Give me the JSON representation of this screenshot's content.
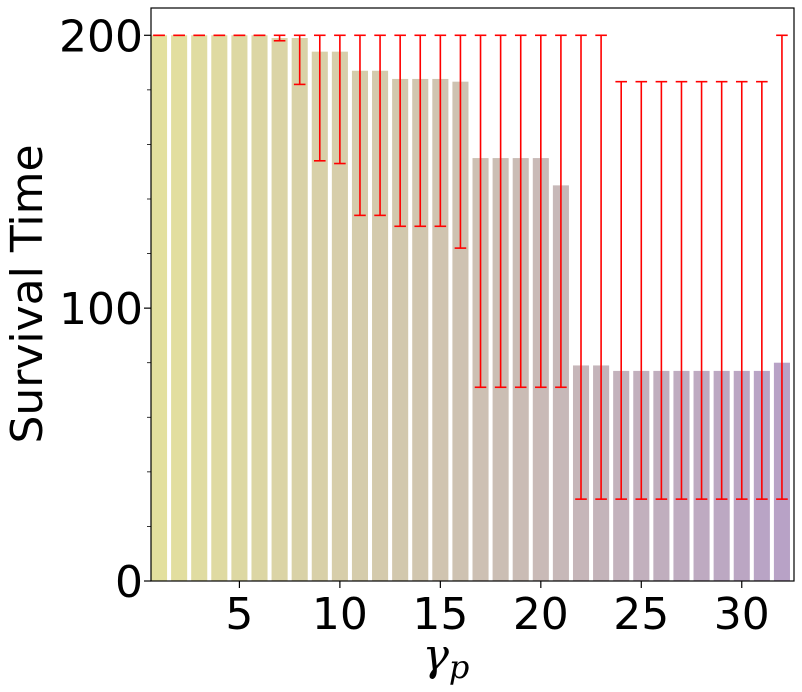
{
  "chart_data": {
    "type": "bar",
    "xlabel_symbol": "γ",
    "xlabel_subscript": "p",
    "ylabel": "Survival Time",
    "x": [
      1,
      2,
      3,
      4,
      5,
      6,
      7,
      8,
      9,
      10,
      11,
      12,
      13,
      14,
      15,
      16,
      17,
      18,
      19,
      20,
      21,
      22,
      23,
      24,
      25,
      26,
      27,
      28,
      29,
      30,
      31,
      32
    ],
    "values": [
      200,
      200,
      200,
      200,
      200,
      200,
      199,
      199,
      194,
      194,
      187,
      187,
      184,
      184,
      184,
      183,
      155,
      155,
      155,
      155,
      145,
      79,
      79,
      77,
      77,
      77,
      77,
      77,
      77,
      77,
      77,
      80
    ],
    "error_low": [
      200,
      200,
      200,
      200,
      200,
      200,
      198,
      182,
      154,
      153,
      134,
      134,
      130,
      130,
      130,
      122,
      71,
      71,
      71,
      71,
      71,
      30,
      30,
      30,
      30,
      30,
      30,
      30,
      30,
      30,
      30,
      30
    ],
    "error_high": [
      200,
      200,
      200,
      200,
      200,
      200,
      200,
      200,
      200,
      200,
      200,
      200,
      200,
      200,
      200,
      200,
      200,
      200,
      200,
      200,
      200,
      200,
      200,
      183,
      183,
      183,
      183,
      183,
      183,
      183,
      183,
      200
    ],
    "xlim": [
      0.6,
      32.6
    ],
    "ylim": [
      0,
      210
    ],
    "xticks": [
      5,
      10,
      15,
      20,
      25,
      30
    ],
    "yticks": [
      0,
      100,
      200
    ],
    "bar_color_start": "#e3e09e",
    "bar_color_end": "#b8a2c6",
    "error_color": "#ff0000",
    "grid": false,
    "legend": "none"
  }
}
